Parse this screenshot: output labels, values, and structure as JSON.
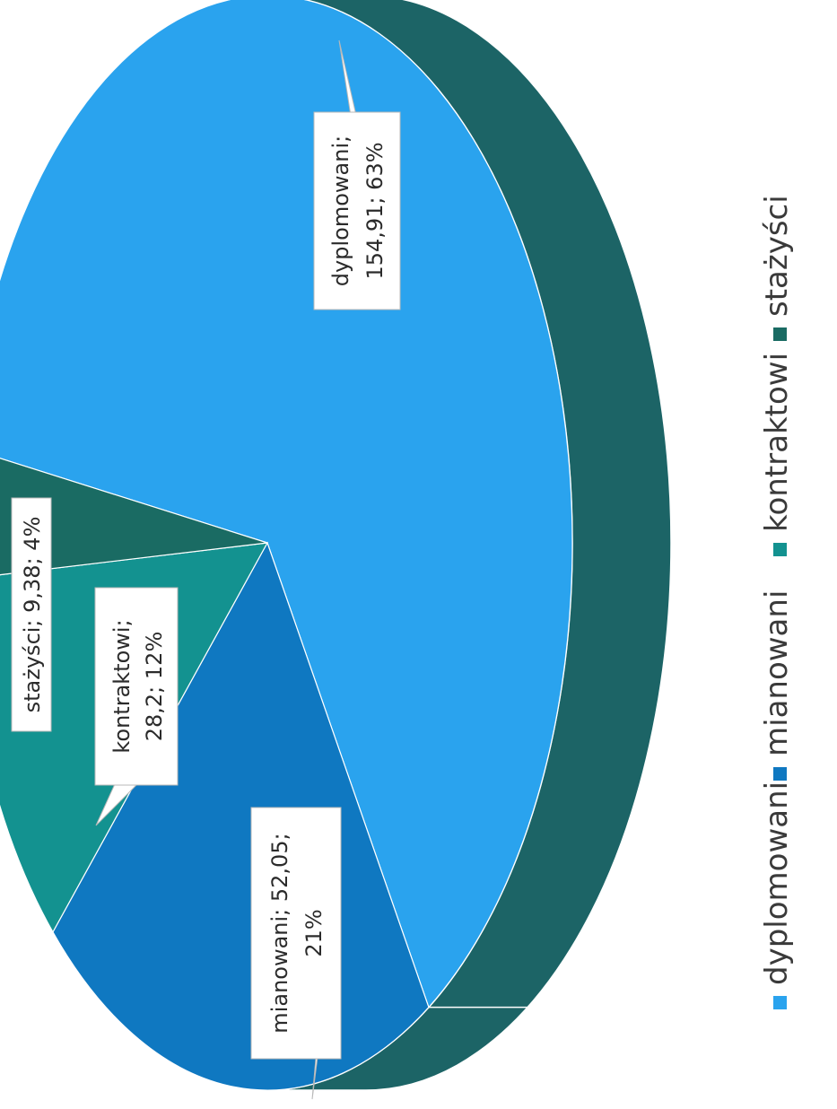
{
  "chart_data": {
    "type": "pie",
    "title": "",
    "categories": [
      "dyplomowani",
      "mianowani",
      "kontraktowi",
      "stażyści"
    ],
    "values": [
      154.91,
      52.05,
      28.2,
      9.38
    ],
    "percents": [
      "63%",
      "21%",
      "12%",
      "4%"
    ],
    "legend_position": "bottom",
    "colors": {
      "dyplomowani": "#2aa3ee",
      "mianowani": "#0f78c1",
      "kontraktowi": "#139290",
      "stażyści": "#1a6b63",
      "side": "#1c6466"
    },
    "data_labels": [
      {
        "line1": "dyplomowani;",
        "line2": "154,91; 63%"
      },
      {
        "line1": "mianowani; 52,05;",
        "line2": "21%"
      },
      {
        "line1": "kontraktowi;",
        "line2": "28,2; 12%"
      },
      {
        "line1": "stażyści; 9,38; 4%",
        "line2": ""
      }
    ]
  }
}
